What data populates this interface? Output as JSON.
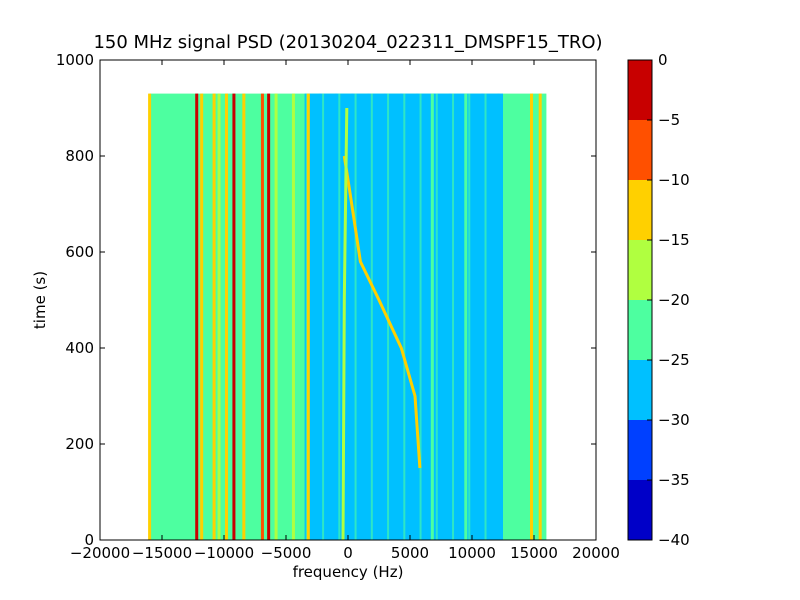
{
  "chart_data": {
    "type": "heatmap",
    "title": "150 MHz signal PSD (20130204_022311_DMSPF15_TRO)",
    "xlabel": "frequency (Hz)",
    "ylabel": "time (s)",
    "xlim": [
      -20000,
      20000
    ],
    "ylim": [
      0,
      1000
    ],
    "x_ticks": [
      -20000,
      -15000,
      -10000,
      -5000,
      0,
      5000,
      10000,
      15000,
      20000
    ],
    "y_ticks": [
      0,
      200,
      400,
      600,
      800,
      1000
    ],
    "data_extent": {
      "freq_min": -16000,
      "freq_max": 16000,
      "time_min": 0,
      "time_max": 930
    },
    "colorbar": {
      "levels": [
        -40,
        -35,
        -30,
        -25,
        -20,
        -15,
        -10,
        -5,
        0
      ],
      "colors": [
        "#0000c8",
        "#0040ff",
        "#00c0ff",
        "#4dffa0",
        "#b0ff40",
        "#ffd000",
        "#ff5000",
        "#c80000"
      ]
    },
    "background_level": -22.5,
    "regions": [
      {
        "freq_from": -3500,
        "freq_to": 12500,
        "level": -27.5,
        "note": "blue band"
      }
    ],
    "lines": [
      {
        "freq": -16000,
        "level": -12.5
      },
      {
        "freq": -12200,
        "level": -2.5
      },
      {
        "freq": -11800,
        "level": -12.5
      },
      {
        "freq": -10800,
        "level": -12.5
      },
      {
        "freq": -10400,
        "level": -17.5
      },
      {
        "freq": -9800,
        "level": -12.5
      },
      {
        "freq": -9200,
        "level": -2.5
      },
      {
        "freq": -8400,
        "level": -12.5
      },
      {
        "freq": -6900,
        "level": -7.5
      },
      {
        "freq": -6400,
        "level": -2.5
      },
      {
        "freq": -5800,
        "level": -17.5
      },
      {
        "freq": -4400,
        "level": -17.5
      },
      {
        "freq": -3200,
        "level": -12.5
      },
      {
        "freq": 6800,
        "level": -22.5
      },
      {
        "freq": 9500,
        "level": -22.5
      },
      {
        "freq": 14800,
        "level": -12.5
      },
      {
        "freq": 15500,
        "level": -12.5
      }
    ],
    "tracks": [
      {
        "level": -12.5,
        "points": [
          [
            -300,
            800
          ],
          [
            300,
            700
          ],
          [
            1000,
            580
          ],
          [
            2500,
            500
          ],
          [
            4300,
            400
          ],
          [
            5400,
            300
          ],
          [
            5800,
            150
          ]
        ]
      },
      {
        "level": -17.5,
        "points": [
          [
            -400,
            0
          ],
          [
            -300,
            500
          ],
          [
            -100,
            900
          ]
        ]
      }
    ]
  }
}
